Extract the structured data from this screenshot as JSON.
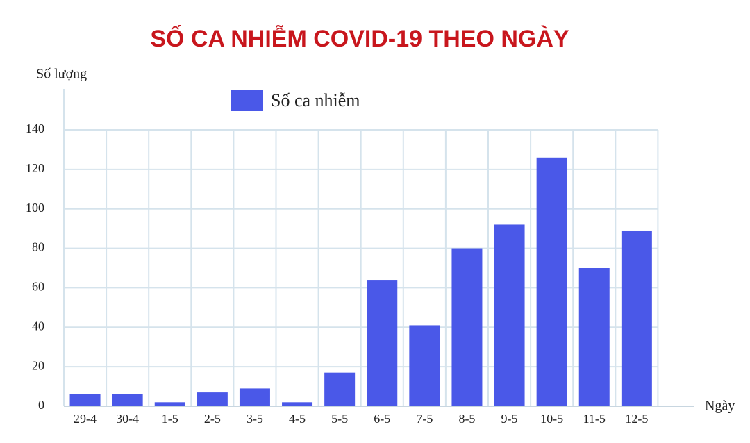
{
  "chart_data": {
    "type": "bar",
    "title": "SỐ CA NHIỄM COVID-19 THEO NGÀY",
    "y_label": "Số lượng",
    "x_label": "Ngày",
    "categories": [
      "29-4",
      "30-4",
      "1-5",
      "2-5",
      "3-5",
      "4-5",
      "5-5",
      "6-5",
      "7-5",
      "8-5",
      "9-5",
      "10-5",
      "11-5",
      "12-5"
    ],
    "series": [
      {
        "name": "Số ca nhiễm",
        "color": "#4a58e8",
        "values": [
          6,
          6,
          2,
          7,
          9,
          2,
          17,
          64,
          41,
          80,
          92,
          126,
          70,
          89
        ]
      }
    ],
    "ylim": [
      0,
      140
    ],
    "yticks": [
      0,
      20,
      40,
      60,
      80,
      100,
      120,
      140
    ],
    "grid": true
  }
}
